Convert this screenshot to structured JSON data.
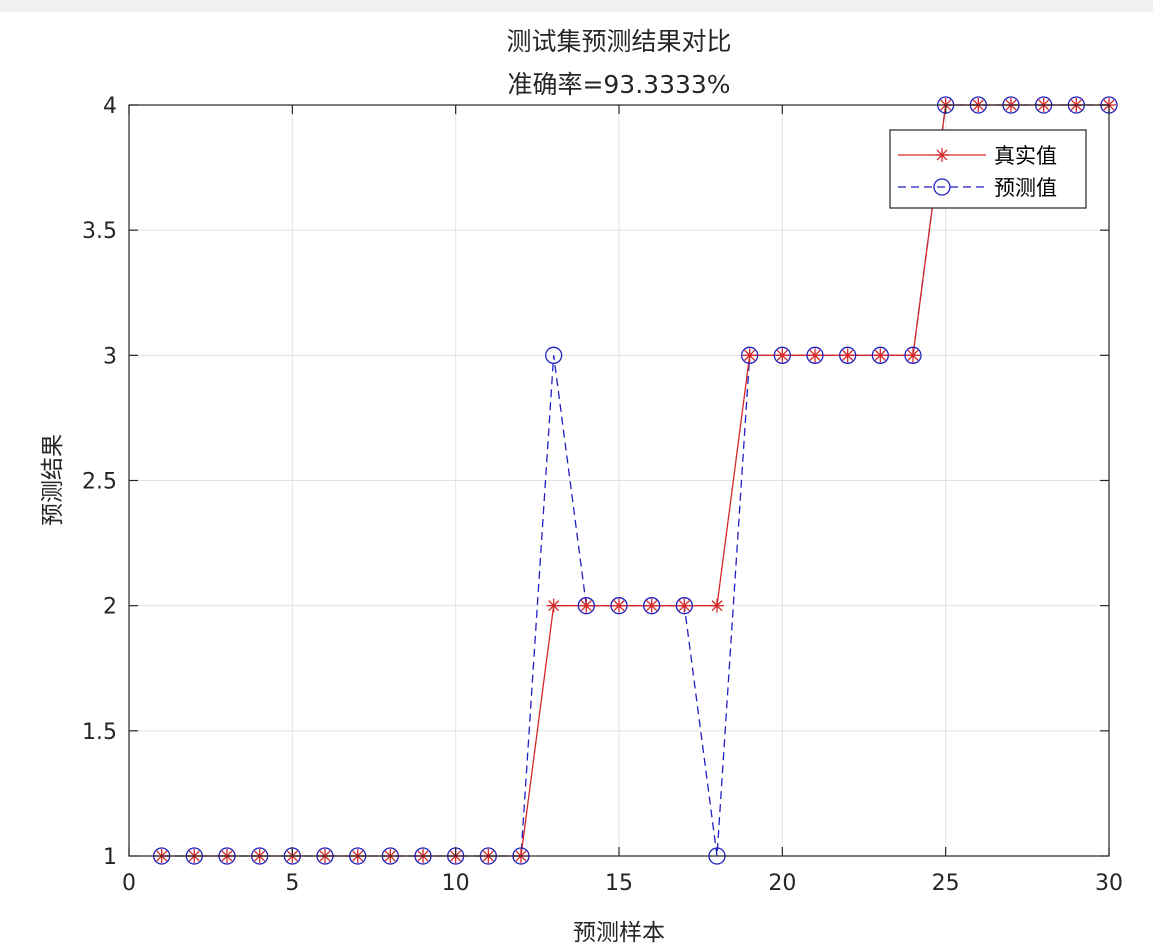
{
  "chart_data": {
    "type": "line",
    "title": "测试集预测结果对比",
    "subtitle": "准确率=93.3333%",
    "xlabel": "预测样本",
    "ylabel": "预测结果",
    "xlim": [
      0,
      30
    ],
    "ylim": [
      1,
      4
    ],
    "xticks": [
      0,
      5,
      10,
      15,
      20,
      25,
      30
    ],
    "yticks": [
      1,
      1.5,
      2,
      2.5,
      3,
      3.5,
      4
    ],
    "grid": true,
    "legend_position": "top-right",
    "x": [
      1,
      2,
      3,
      4,
      5,
      6,
      7,
      8,
      9,
      10,
      11,
      12,
      13,
      14,
      15,
      16,
      17,
      18,
      19,
      20,
      21,
      22,
      23,
      24,
      25,
      26,
      27,
      28,
      29,
      30
    ],
    "series": [
      {
        "name": "真实值",
        "color": "#d62728",
        "line_style": "solid",
        "marker": "asterisk",
        "values": [
          1,
          1,
          1,
          1,
          1,
          1,
          1,
          1,
          1,
          1,
          1,
          1,
          2,
          2,
          2,
          2,
          2,
          2,
          3,
          3,
          3,
          3,
          3,
          3,
          4,
          4,
          4,
          4,
          4,
          4
        ]
      },
      {
        "name": "预测值",
        "color": "#1f1fbf",
        "line_style": "dashed",
        "marker": "circle",
        "values": [
          1,
          1,
          1,
          1,
          1,
          1,
          1,
          1,
          1,
          1,
          1,
          1,
          3,
          2,
          2,
          2,
          2,
          1,
          3,
          3,
          3,
          3,
          3,
          3,
          4,
          4,
          4,
          4,
          4,
          4
        ]
      }
    ]
  }
}
